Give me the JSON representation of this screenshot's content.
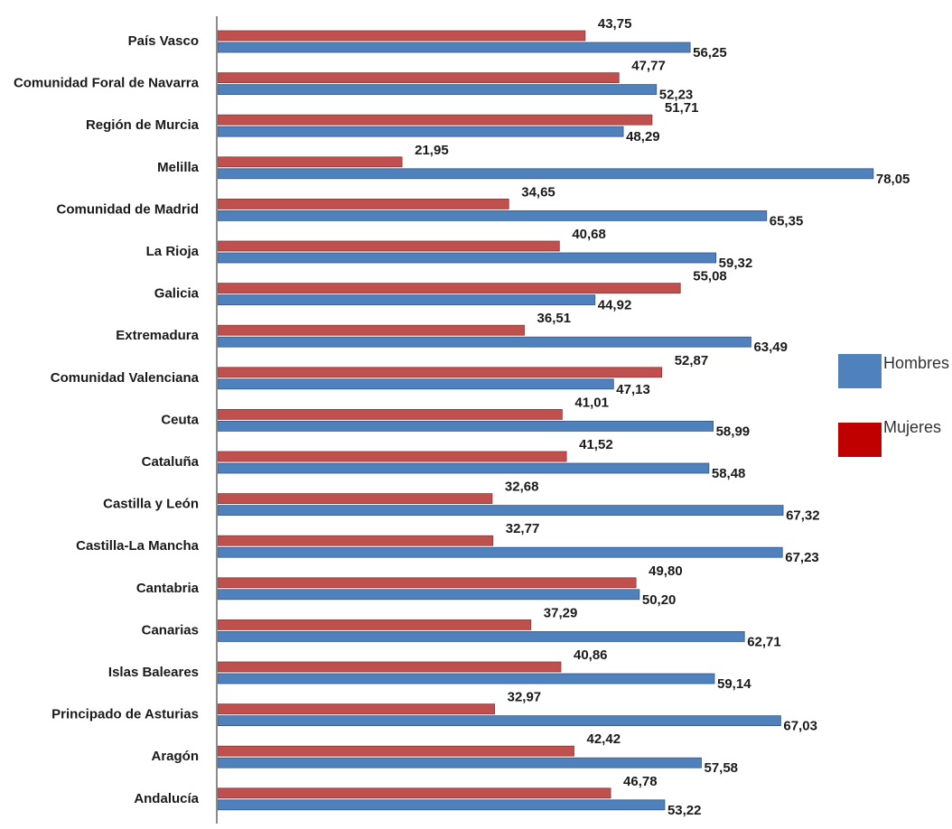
{
  "chart_data": {
    "type": "bar",
    "orientation": "horizontal",
    "categories": [
      "País Vasco",
      "Comunidad Foral de Navarra",
      "Región de Murcia",
      "Melilla",
      "Comunidad de Madrid",
      "La Rioja",
      "Galicia",
      "Extremadura",
      "Comunidad Valenciana",
      "Ceuta",
      "Cataluña",
      "Castilla y León",
      "Castilla-La Mancha",
      "Cantabria",
      "Canarias",
      "Islas Baleares",
      "Principado de Asturias",
      "Aragón",
      "Andalucía"
    ],
    "series": [
      {
        "name": "Mujeres",
        "color": "#c0504d",
        "values": [
          43.75,
          47.77,
          51.71,
          21.95,
          34.65,
          40.68,
          55.08,
          36.51,
          52.87,
          41.01,
          41.52,
          32.68,
          32.77,
          49.8,
          37.29,
          40.86,
          32.97,
          42.42,
          46.78
        ],
        "labels": [
          "43,75",
          "47,77",
          "51,71",
          "21,95",
          "34,65",
          "40,68",
          "55,08",
          "36,51",
          "52,87",
          "41,01",
          "41,52",
          "32,68",
          "32,77",
          "49,80",
          "37,29",
          "40,86",
          "32,97",
          "42,42",
          "46,78"
        ]
      },
      {
        "name": "Hombres",
        "color": "#4f81bd",
        "values": [
          56.25,
          52.23,
          48.29,
          78.05,
          65.35,
          59.32,
          44.92,
          63.49,
          47.13,
          58.99,
          58.48,
          67.32,
          67.23,
          50.2,
          62.71,
          59.14,
          67.03,
          57.58,
          53.22
        ],
        "labels": [
          "56,25",
          "52,23",
          "48,29",
          "78,05",
          "65,35",
          "59,32",
          "44,92",
          "63,49",
          "47,13",
          "58,99",
          "58,48",
          "67,32",
          "67,23",
          "50,20",
          "62,71",
          "59,14",
          "67,03",
          "57,58",
          "53,22"
        ]
      }
    ],
    "xlim": [
      0,
      80
    ],
    "grid": false,
    "legend": {
      "placement": "right",
      "items": [
        {
          "label": "Hombres",
          "color": "#4f81bd"
        },
        {
          "label": "Mujeres",
          "color": "#c00000"
        }
      ]
    }
  }
}
